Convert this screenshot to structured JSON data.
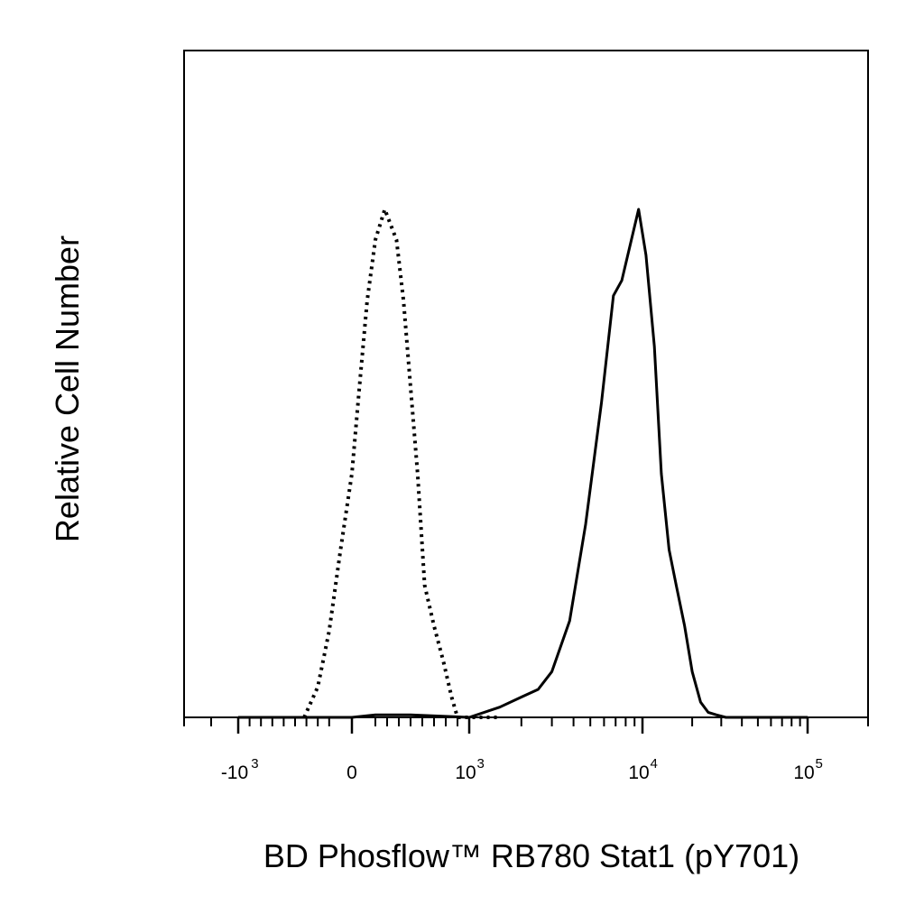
{
  "chart_data": {
    "type": "line",
    "title": "",
    "xlabel": "BD Phosflow™ RB780 Stat1 (pY701)",
    "ylabel": "Relative Cell Number",
    "x_scale": "biexponential",
    "xlim": [
      -2000,
      200000
    ],
    "ylim": [
      0,
      1.15
    ],
    "grid": false,
    "legend": "none",
    "x_tick_labels": [
      {
        "base": "-10",
        "exp": "3",
        "value": -1000
      },
      {
        "base": "0",
        "exp": "",
        "value": 0
      },
      {
        "base": "10",
        "exp": "3",
        "value": 1000
      },
      {
        "base": "10",
        "exp": "4",
        "value": 10000
      },
      {
        "base": "10",
        "exp": "5",
        "value": 100000
      }
    ],
    "series": [
      {
        "style": "dotted",
        "color": "#000000",
        "x": [
          -420,
          -300,
          -200,
          -100,
          0,
          60,
          130,
          200,
          280,
          330,
          380,
          440,
          500,
          560,
          620,
          700,
          780,
          850,
          900,
          980,
          1100,
          1300,
          1500
        ],
        "y": [
          0.0,
          0.06,
          0.17,
          0.33,
          0.48,
          0.64,
          0.82,
          0.94,
          1.0,
          0.97,
          0.94,
          0.82,
          0.65,
          0.48,
          0.26,
          0.18,
          0.11,
          0.04,
          0.0,
          0.0,
          0.0,
          0.0,
          0.0
        ]
      },
      {
        "style": "solid",
        "color": "#000000",
        "x": [
          -1000,
          0,
          200,
          500,
          1000,
          1500,
          2000,
          2500,
          3000,
          3800,
          4700,
          5800,
          6800,
          7600,
          8500,
          9500,
          10500,
          11800,
          13000,
          14500,
          16000,
          18000,
          20000,
          22500,
          25000,
          28000,
          32000,
          38000,
          48000,
          60000,
          100000
        ],
        "y": [
          0.0,
          0.0,
          0.005,
          0.005,
          0.0,
          0.02,
          0.04,
          0.055,
          0.09,
          0.19,
          0.38,
          0.62,
          0.83,
          0.86,
          0.93,
          1.0,
          0.91,
          0.73,
          0.48,
          0.33,
          0.26,
          0.18,
          0.09,
          0.03,
          0.01,
          0.005,
          0.0,
          0.0,
          0.0,
          0.0,
          0.0
        ]
      }
    ]
  }
}
